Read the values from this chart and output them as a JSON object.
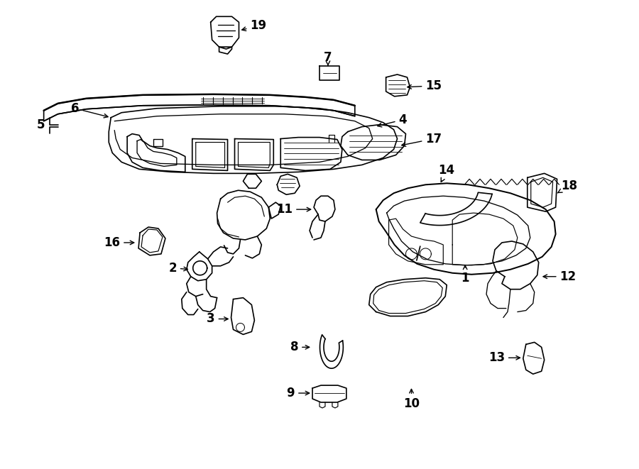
{
  "bg_color": "#ffffff",
  "line_color": "#000000",
  "fig_width": 9.0,
  "fig_height": 6.61,
  "dpi": 100,
  "label_fontsize": 12,
  "label_fontweight": "bold"
}
